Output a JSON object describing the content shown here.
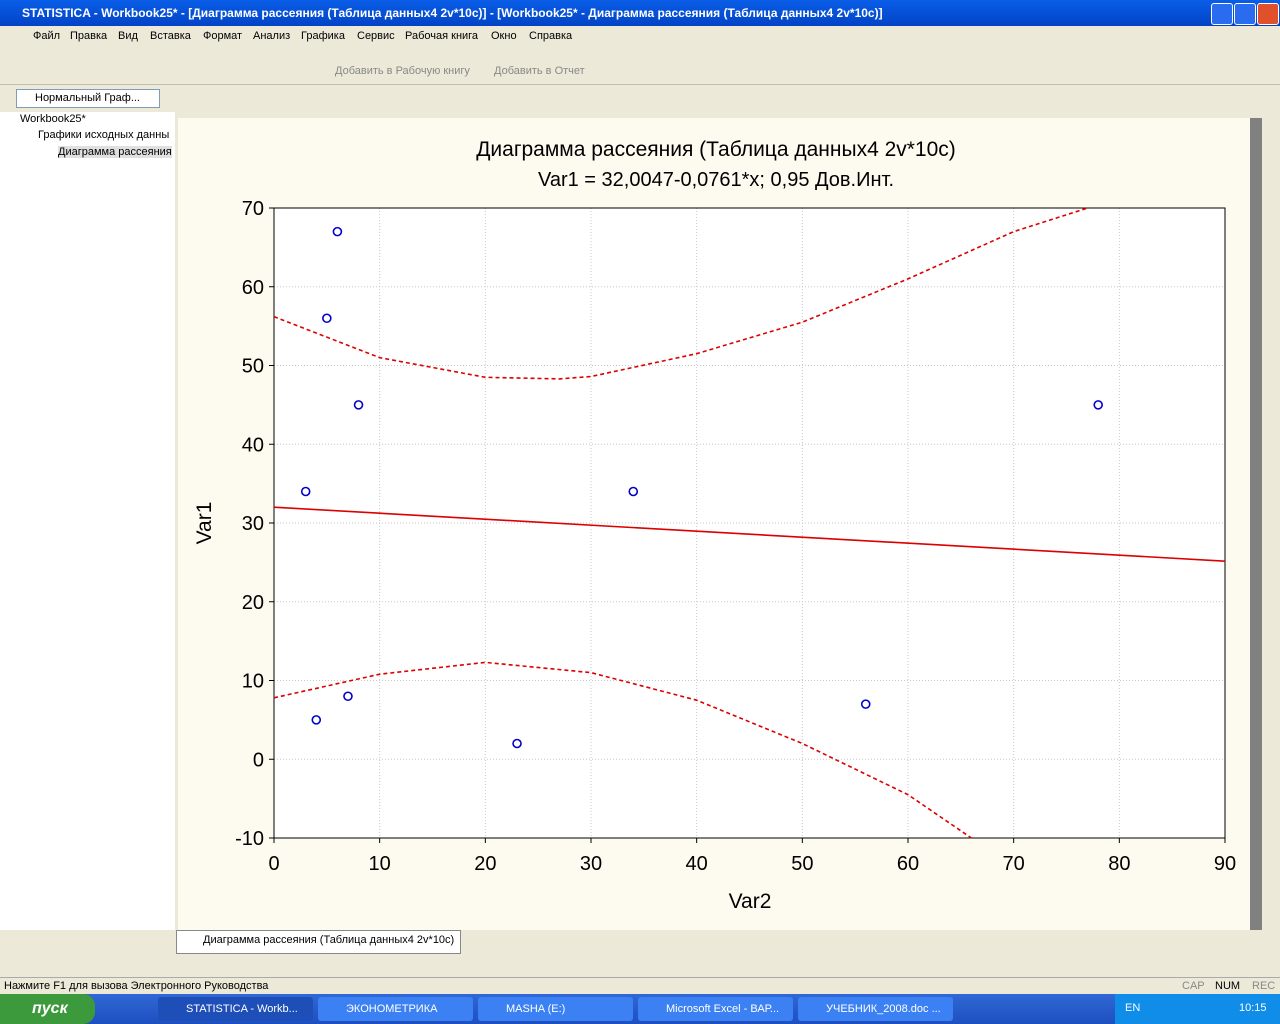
{
  "window": {
    "title": "STATISTICA - Workbook25* - [Диаграмма рассеяния (Таблица данных4 2v*10c)] - [Workbook25* - Диаграмма рассеяния (Таблица данных4 2v*10c)]"
  },
  "menu": [
    "Файл",
    "Правка",
    "Вид",
    "Вставка",
    "Формат",
    "Анализ",
    "Графика",
    "Сервис",
    "Рабочая книга",
    "Окно",
    "Справка"
  ],
  "toolbar": {
    "add_workbook": "Добавить в Рабочую книгу",
    "add_report": "Добавить в Отчет",
    "style": "Нормальный Граф..."
  },
  "tree": [
    "Workbook25*",
    "Графики исходных данны",
    "Диаграмма рассеяния"
  ],
  "tab": "Диаграмма рассеяния (Таблица данных4 2v*10c)",
  "status": {
    "hint": "Нажмите F1 для вызова Электронного Руководства",
    "cap": "CAP",
    "num": "NUM",
    "rec": "REC"
  },
  "taskbar": {
    "start": "пуск",
    "items": [
      "STATISTICA - Workb...",
      "ЭКОНОМЕТРИКА",
      "MASHA (E:)",
      "Microsoft Excel - ВАР...",
      "УЧЕБНИК_2008.doc ..."
    ],
    "lang": "EN",
    "clock": "10:15"
  },
  "chart_data": {
    "type": "scatter",
    "title": "Диаграмма рассеяния (Таблица данных4 2v*10c)",
    "subtitle": "Var1 = 32,0047-0,0761*x; 0,95 Дов.Инт.",
    "xlabel": "Var2",
    "ylabel": "Var1",
    "xlim": [
      0,
      90
    ],
    "xticks": [
      0,
      10,
      20,
      30,
      40,
      50,
      60,
      70,
      80,
      90
    ],
    "ylim": [
      -10,
      70
    ],
    "yticks": [
      -10,
      0,
      10,
      20,
      30,
      40,
      50,
      60,
      70
    ],
    "grid": true,
    "series": [
      {
        "type": "scatter",
        "color": "#0000cc",
        "x": [
          3,
          4,
          5,
          6,
          7,
          8,
          23,
          34,
          56,
          78
        ],
        "values": [
          34,
          5,
          56,
          67,
          8,
          45,
          2,
          34,
          7,
          45
        ]
      },
      {
        "type": "line",
        "color": "#dd0000",
        "x": [
          0,
          90
        ],
        "values": [
          32.0047,
          25.1557
        ]
      },
      {
        "type": "line",
        "color": "#dd0000",
        "dashed": true,
        "x": [
          0,
          10,
          20,
          27,
          30,
          40,
          50,
          60,
          70,
          77
        ],
        "values": [
          56.2,
          51,
          48.5,
          48.3,
          48.6,
          51.5,
          55.5,
          61,
          67,
          70
        ]
      },
      {
        "type": "line",
        "color": "#dd0000",
        "dashed": true,
        "x": [
          0,
          10,
          20,
          30,
          40,
          50,
          60,
          66
        ],
        "values": [
          7.8,
          10.8,
          12.3,
          11,
          7.5,
          2,
          -4.5,
          -10
        ]
      }
    ]
  }
}
